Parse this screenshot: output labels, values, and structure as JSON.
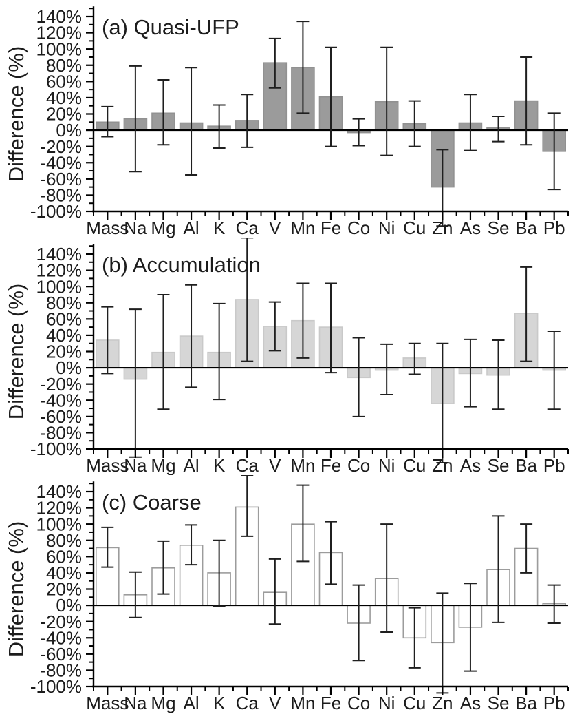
{
  "figure_name": "size-resolved-elemental-difference-chart",
  "axes": {
    "ylabel": "Difference (%)",
    "ylim": [
      -100,
      140
    ],
    "ytick_step": 20,
    "ytick_labels": [
      "140%",
      "120%",
      "100%",
      "80%",
      "60%",
      "40%",
      "20%",
      "0%",
      "-20%",
      "-40%",
      "-60%",
      "-80%",
      "-100%"
    ],
    "grid": false,
    "legend": "none"
  },
  "chart_data": [
    {
      "type": "bar",
      "title": "(a) Quasi-UFP",
      "ylabel": "Difference (%)",
      "ylim": [
        -100,
        140
      ],
      "categories": [
        "Mass",
        "Na",
        "Mg",
        "Al",
        "K",
        "Ca",
        "V",
        "Mn",
        "Fe",
        "Co",
        "Ni",
        "Cu",
        "Zn",
        "As",
        "Se",
        "Ba",
        "Pb"
      ],
      "values": [
        10,
        14,
        21,
        9,
        5,
        12,
        83,
        77,
        41,
        -3,
        35,
        8,
        -70,
        9,
        3,
        36,
        -26
      ],
      "error_low": [
        -8,
        -51,
        -18,
        -55,
        -22,
        -21,
        52,
        21,
        -20,
        -19,
        -31,
        -20,
        -118,
        -25,
        -14,
        -18,
        -73
      ],
      "error_high": [
        29,
        79,
        62,
        77,
        31,
        44,
        113,
        134,
        102,
        14,
        102,
        36,
        -24,
        44,
        17,
        90,
        21
      ],
      "bar_fill": "#9b9b9b",
      "bar_stroke": "#919191"
    },
    {
      "type": "bar",
      "title": "(b) Accumulation",
      "ylabel": "Difference (%)",
      "ylim": [
        -100,
        140
      ],
      "categories": [
        "Mass",
        "Na",
        "Mg",
        "Al",
        "K",
        "Ca",
        "V",
        "Mn",
        "Fe",
        "Co",
        "Ni",
        "Cu",
        "Zn",
        "As",
        "Se",
        "Ba",
        "Pb"
      ],
      "values": [
        34,
        -14,
        19,
        39,
        19,
        84,
        51,
        58,
        50,
        -12,
        -3,
        12,
        -44,
        -7,
        -9,
        67,
        -3
      ],
      "error_low": [
        -7,
        -110,
        -51,
        -24,
        -39,
        8,
        21,
        12,
        -6,
        -60,
        -33,
        -8,
        -117,
        -48,
        -51,
        8,
        -51
      ],
      "error_high": [
        75,
        72,
        90,
        102,
        79,
        160,
        81,
        104,
        104,
        37,
        29,
        30,
        30,
        35,
        34,
        124,
        45
      ],
      "bar_fill": "#d6d6d6",
      "bar_stroke": "#c9c9c9"
    },
    {
      "type": "bar",
      "title": "(c) Coarse",
      "ylabel": "Difference (%)",
      "ylim": [
        -100,
        140
      ],
      "categories": [
        "Mass",
        "Na",
        "Mg",
        "Al",
        "K",
        "Ca",
        "V",
        "Mn",
        "Fe",
        "Co",
        "Ni",
        "Cu",
        "Zn",
        "As",
        "Se",
        "Ba",
        "Pb"
      ],
      "values": [
        71,
        13,
        46,
        74,
        40,
        121,
        16,
        100,
        65,
        -22,
        33,
        -40,
        -46,
        -27,
        44,
        70,
        2
      ],
      "error_low": [
        47,
        -15,
        14,
        50,
        -1,
        85,
        -23,
        54,
        26,
        -68,
        -33,
        -77,
        -108,
        -81,
        -21,
        40,
        -22
      ],
      "error_high": [
        96,
        41,
        79,
        99,
        80,
        160,
        57,
        148,
        103,
        25,
        100,
        -3,
        15,
        27,
        110,
        100,
        25
      ],
      "bar_fill": "#ffffff",
      "bar_stroke": "#9c9c9c"
    }
  ],
  "style": {
    "axis_color": "#000000",
    "error_bar_color": "#1f1f1f",
    "text_color": "#1c1c1c"
  }
}
